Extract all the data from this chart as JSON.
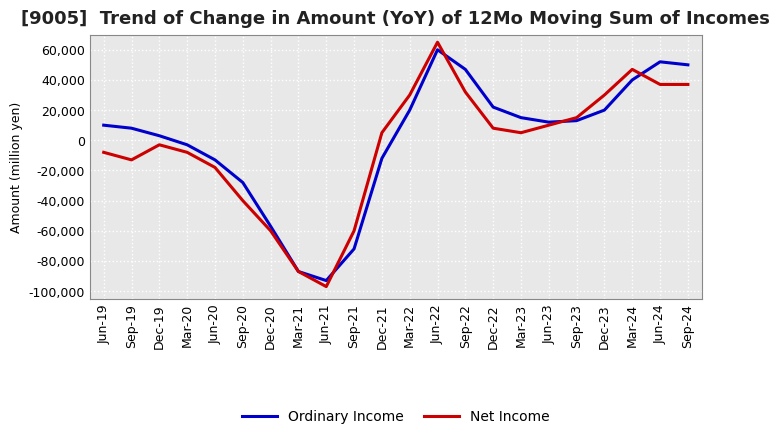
{
  "title": "[9005]  Trend of Change in Amount (YoY) of 12Mo Moving Sum of Incomes",
  "ylabel": "Amount (million yen)",
  "ylim": [
    -105000,
    70000
  ],
  "yticks": [
    -100000,
    -80000,
    -60000,
    -40000,
    -20000,
    0,
    20000,
    40000,
    60000
  ],
  "plot_bg_color": "#e8e8e8",
  "fig_bg_color": "#ffffff",
  "grid_color": "#ffffff",
  "x_labels": [
    "Jun-19",
    "Sep-19",
    "Dec-19",
    "Mar-20",
    "Jun-20",
    "Sep-20",
    "Dec-20",
    "Mar-21",
    "Jun-21",
    "Sep-21",
    "Dec-21",
    "Mar-22",
    "Jun-22",
    "Sep-22",
    "Dec-22",
    "Mar-23",
    "Jun-23",
    "Sep-23",
    "Dec-23",
    "Mar-24",
    "Jun-24",
    "Sep-24"
  ],
  "ordinary_income": [
    10000,
    8000,
    3000,
    -3000,
    -13000,
    -28000,
    -57000,
    -87000,
    -93000,
    -72000,
    -12000,
    20000,
    60000,
    47000,
    22000,
    15000,
    12000,
    13000,
    20000,
    40000,
    52000,
    50000
  ],
  "net_income": [
    -8000,
    -13000,
    -3000,
    -8000,
    -18000,
    -40000,
    -60000,
    -87000,
    -97000,
    -60000,
    5000,
    30000,
    65000,
    32000,
    8000,
    5000,
    10000,
    15000,
    30000,
    47000,
    37000,
    37000
  ],
  "ordinary_color": "#0000cc",
  "net_color": "#cc0000",
  "line_width": 2.2,
  "title_fontsize": 13,
  "legend_fontsize": 10,
  "tick_fontsize": 9,
  "ylabel_fontsize": 9
}
